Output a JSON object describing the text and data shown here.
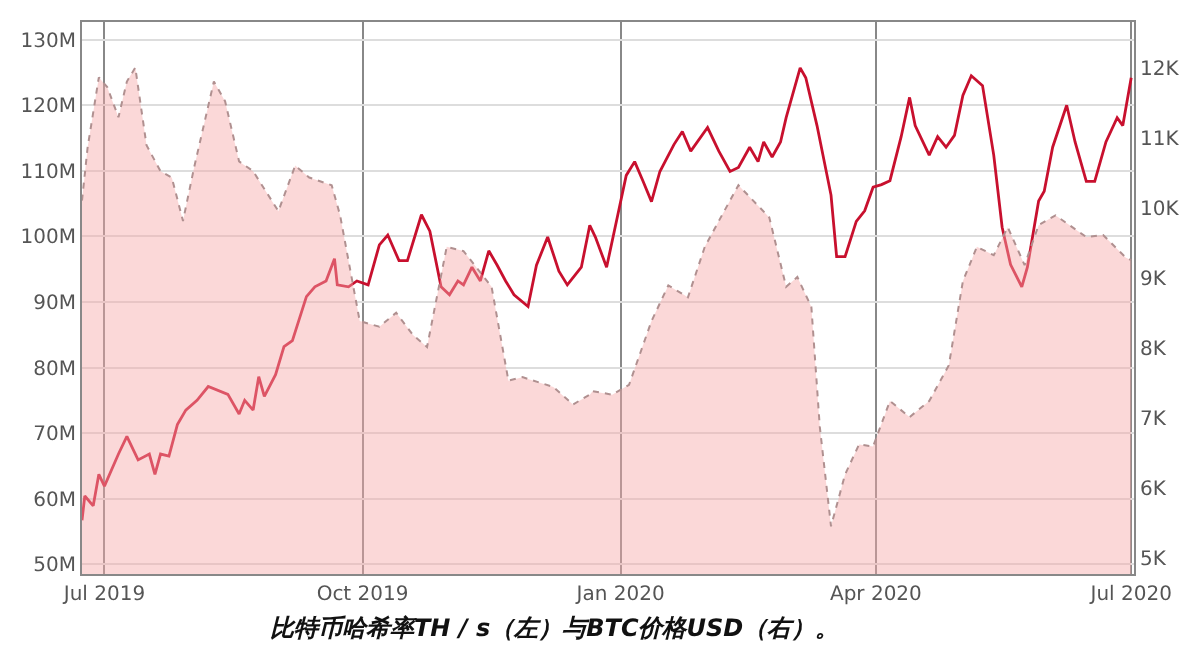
{
  "chart_data": {
    "type": "line",
    "annotations": [
      "比特币哈希率TH / s（左）与BTC价格USD（右）。"
    ],
    "xlim": [
      "2019-06-23",
      "2020-07-02"
    ],
    "xticks": [
      {
        "value": "2019-07-01",
        "label": "Jul 2019"
      },
      {
        "value": "2019-10-01",
        "label": "Oct 2019"
      },
      {
        "value": "2020-01-01",
        "label": "Jan 2020"
      },
      {
        "value": "2020-04-01",
        "label": "Apr 2020"
      },
      {
        "value": "2020-07-01",
        "label": "Jul 2020"
      }
    ],
    "ylim": [
      48.5,
      132.7
    ],
    "yticks": [
      {
        "value": 50,
        "label": "50M"
      },
      {
        "value": 60,
        "label": "60M"
      },
      {
        "value": 70,
        "label": "70M"
      },
      {
        "value": 80,
        "label": "80M"
      },
      {
        "value": 90,
        "label": "90M"
      },
      {
        "value": 100,
        "label": "100M"
      },
      {
        "value": 110,
        "label": "110M"
      },
      {
        "value": 120,
        "label": "120M"
      },
      {
        "value": 130,
        "label": "130M"
      }
    ],
    "y2lim": [
      4.77,
      12.65
    ],
    "y2ticks": [
      {
        "value": 5,
        "label": "5K"
      },
      {
        "value": 6,
        "label": "6K"
      },
      {
        "value": 7,
        "label": "7K"
      },
      {
        "value": 8,
        "label": "8K"
      },
      {
        "value": 9,
        "label": "9K"
      },
      {
        "value": 10,
        "label": "10K"
      },
      {
        "value": 11,
        "label": "11K"
      },
      {
        "value": 12,
        "label": "12K"
      }
    ],
    "grid": true,
    "marker": "none",
    "series": [
      {
        "type": "area",
        "axis": "y2",
        "color": "#f7a8a8",
        "line_style": "dotted",
        "x": [
          "2019-06-23",
          "2019-06-25",
          "2019-06-29",
          "2019-07-02",
          "2019-07-06",
          "2019-07-09",
          "2019-07-12",
          "2019-07-16",
          "2019-07-21",
          "2019-07-25",
          "2019-07-29",
          "2019-08-02",
          "2019-08-09",
          "2019-08-13",
          "2019-08-18",
          "2019-08-23",
          "2019-09-01",
          "2019-09-07",
          "2019-09-12",
          "2019-09-20",
          "2019-09-23",
          "2019-09-30",
          "2019-10-07",
          "2019-10-13",
          "2019-10-19",
          "2019-10-24",
          "2019-10-31",
          "2019-11-06",
          "2019-11-16",
          "2019-11-22",
          "2019-11-27",
          "2019-12-08",
          "2019-12-15",
          "2019-12-21",
          "2019-12-22",
          "2019-12-29",
          "2020-01-04",
          "2020-01-12",
          "2020-01-18",
          "2020-01-25",
          "2020-01-31",
          "2020-02-05",
          "2020-02-12",
          "2020-02-23",
          "2020-02-29",
          "2020-03-04",
          "2020-03-09",
          "2020-03-12",
          "2020-03-16",
          "2020-03-21",
          "2020-03-26",
          "2020-03-31",
          "2020-04-06",
          "2020-04-13",
          "2020-04-20",
          "2020-04-27",
          "2020-05-02",
          "2020-05-07",
          "2020-05-13",
          "2020-05-18",
          "2020-05-24",
          "2020-05-29",
          "2020-06-04",
          "2020-06-15",
          "2020-06-21",
          "2020-06-29",
          "2020-07-01"
        ],
        "values": [
          10.1,
          10.86,
          11.86,
          11.72,
          11.29,
          11.8,
          12.0,
          10.89,
          10.52,
          10.43,
          9.81,
          10.58,
          11.8,
          11.52,
          10.66,
          10.52,
          9.95,
          10.6,
          10.43,
          10.32,
          9.89,
          8.38,
          8.3,
          8.5,
          8.18,
          8.01,
          9.44,
          9.38,
          8.87,
          7.53,
          7.58,
          7.44,
          7.19,
          7.33,
          7.38,
          7.33,
          7.47,
          8.38,
          8.89,
          8.72,
          9.44,
          9.81,
          10.32,
          9.86,
          8.87,
          9.01,
          8.58,
          6.87,
          5.45,
          6.19,
          6.62,
          6.59,
          7.24,
          7.01,
          7.24,
          7.75,
          8.95,
          9.44,
          9.32,
          9.72,
          9.18,
          9.75,
          9.89,
          9.58,
          9.61,
          9.29,
          9.25
        ]
      },
      {
        "color": "#c8102e",
        "line_style": "solid",
        "x": [
          "2019-06-23",
          "2019-06-24",
          "2019-06-27",
          "2019-06-29",
          "2019-07-01",
          "2019-07-06",
          "2019-07-09",
          "2019-07-13",
          "2019-07-17",
          "2019-07-19",
          "2019-07-21",
          "2019-07-24",
          "2019-07-27",
          "2019-07-30",
          "2019-08-03",
          "2019-08-07",
          "2019-08-14",
          "2019-08-18",
          "2019-08-20",
          "2019-08-23",
          "2019-08-25",
          "2019-08-27",
          "2019-08-31",
          "2019-09-03",
          "2019-09-06",
          "2019-09-11",
          "2019-09-14",
          "2019-09-18",
          "2019-09-21",
          "2019-09-22",
          "2019-09-26",
          "2019-09-29",
          "2019-10-03",
          "2019-10-07",
          "2019-10-10",
          "2019-10-14",
          "2019-10-17",
          "2019-10-22",
          "2019-10-25",
          "2019-10-29",
          "2019-11-01",
          "2019-11-04",
          "2019-11-06",
          "2019-11-09",
          "2019-11-12",
          "2019-11-15",
          "2019-11-18",
          "2019-11-21",
          "2019-11-24",
          "2019-11-29",
          "2019-12-02",
          "2019-12-06",
          "2019-12-10",
          "2019-12-13",
          "2019-12-18",
          "2019-12-21",
          "2019-12-23",
          "2019-12-27",
          "2019-12-31",
          "2020-01-03",
          "2020-01-06",
          "2020-01-09",
          "2020-01-12",
          "2020-01-15",
          "2020-01-20",
          "2020-01-23",
          "2020-01-26",
          "2020-02-01",
          "2020-02-05",
          "2020-02-09",
          "2020-02-12",
          "2020-02-16",
          "2020-02-19",
          "2020-02-21",
          "2020-02-24",
          "2020-02-27",
          "2020-02-29",
          "2020-03-05",
          "2020-03-07",
          "2020-03-11",
          "2020-03-16",
          "2020-03-18",
          "2020-03-21",
          "2020-03-25",
          "2020-03-28",
          "2020-03-31",
          "2020-04-03",
          "2020-04-06",
          "2020-04-10",
          "2020-04-13",
          "2020-04-15",
          "2020-04-20",
          "2020-04-23",
          "2020-04-26",
          "2020-04-29",
          "2020-05-02",
          "2020-05-05",
          "2020-05-09",
          "2020-05-13",
          "2020-05-16",
          "2020-05-19",
          "2020-05-23",
          "2020-05-25",
          "2020-05-29",
          "2020-05-31",
          "2020-06-03",
          "2020-06-08",
          "2020-06-11",
          "2020-06-15",
          "2020-06-18",
          "2020-06-22",
          "2020-06-26",
          "2020-06-28",
          "2020-07-01"
        ],
        "values": [
          56.7,
          60.4,
          58.9,
          63.7,
          61.9,
          66.8,
          69.5,
          65.9,
          66.8,
          63.7,
          66.8,
          66.5,
          71.3,
          73.5,
          75.0,
          77.1,
          75.9,
          72.9,
          75.0,
          73.5,
          78.6,
          75.6,
          78.9,
          83.2,
          84.1,
          90.8,
          92.3,
          93.2,
          96.6,
          92.6,
          92.3,
          93.2,
          92.6,
          98.7,
          100.2,
          96.3,
          96.3,
          103.3,
          100.8,
          92.3,
          91.1,
          93.2,
          92.6,
          95.3,
          93.2,
          97.8,
          95.6,
          93.2,
          91.1,
          89.3,
          95.6,
          99.9,
          94.7,
          92.6,
          95.3,
          101.7,
          99.9,
          95.3,
          103.3,
          109.3,
          111.4,
          108.4,
          105.3,
          109.9,
          114.0,
          116.0,
          113.0,
          116.6,
          113.0,
          109.9,
          110.5,
          113.6,
          111.4,
          114.4,
          112.1,
          114.4,
          118.1,
          125.7,
          124.2,
          116.9,
          106.3,
          96.9,
          96.9,
          102.3,
          103.9,
          107.5,
          107.9,
          108.5,
          115.2,
          121.2,
          116.9,
          112.4,
          115.2,
          113.6,
          115.4,
          121.5,
          124.5,
          123.0,
          112.4,
          101.4,
          95.7,
          92.3,
          95.3,
          105.4,
          106.9,
          113.6,
          120.0,
          114.4,
          108.4,
          108.4,
          114.4,
          118.1,
          116.9,
          124.2
        ]
      }
    ]
  }
}
